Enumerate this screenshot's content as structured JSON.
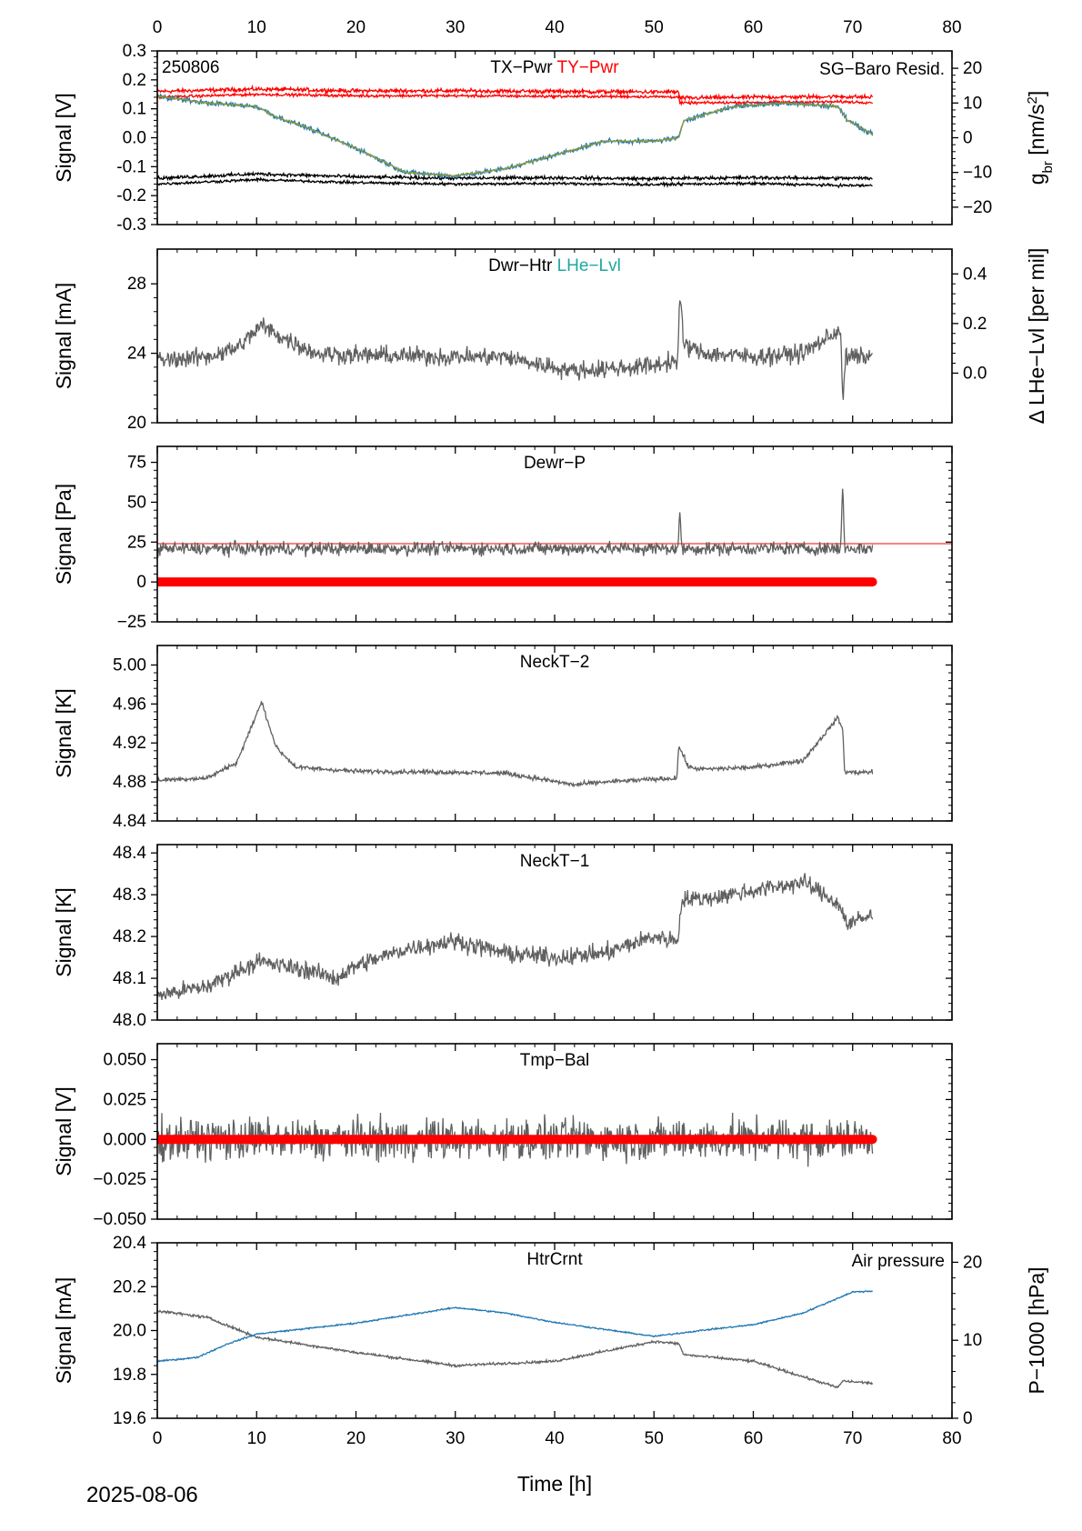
{
  "figure": {
    "date": "2025-08-06",
    "xlabel": "Time [h]",
    "xlim": [
      0,
      80
    ],
    "xticks": [
      0,
      10,
      20,
      30,
      40,
      50,
      60,
      70,
      80
    ],
    "colors": {
      "axes": "#000000",
      "gray": "#606060",
      "red": "#ff0000",
      "blue": "#1f77b4",
      "teal": "#1fa8a0",
      "olive": "#8b9a3a"
    }
  },
  "chart_data": [
    {
      "type": "line",
      "title_parts": [
        {
          "text": "TX−Pwr",
          "color": "#000000"
        },
        {
          "text": "TY−Pwr",
          "color": "#ff0000"
        }
      ],
      "annotation": "250806",
      "right_legend": "SG−Baro Resid.",
      "ylabel": "Signal [V]",
      "ylim": [
        -0.3,
        0.3
      ],
      "yticks": [
        "-0.3",
        "-0.2",
        "-0.1",
        "0.0",
        "0.1",
        "0.2",
        "0.3"
      ],
      "ylabel_right": "g_br [nm/s^2]",
      "ylabel_right_text": {
        "main": "g",
        "sub": "br",
        "rest": " [nm/s",
        "sup": "2",
        "end": "]"
      },
      "ylim_right": [
        -25,
        25
      ],
      "yticks_right": [
        "−20",
        "−10",
        "0",
        "10",
        "20"
      ],
      "yticks_right_values": [
        -20,
        -10,
        0,
        10,
        20
      ],
      "series": [
        {
          "axis": "left",
          "color": "#ff0000",
          "noise": 0.006,
          "x": [
            0,
            10,
            20,
            30,
            40,
            50,
            52.5,
            52.6,
            60,
            68.5,
            69,
            72
          ],
          "values": [
            0.16,
            0.168,
            0.162,
            0.162,
            0.16,
            0.158,
            0.158,
            0.137,
            0.14,
            0.142,
            0.142,
            0.14
          ]
        },
        {
          "axis": "left",
          "color": "#ff0000",
          "noise": 0.004,
          "x": [
            0,
            10,
            20,
            30,
            40,
            50,
            52.5,
            52.6,
            60,
            68.5,
            69,
            72
          ],
          "values": [
            0.14,
            0.15,
            0.145,
            0.145,
            0.143,
            0.142,
            0.141,
            0.12,
            0.122,
            0.124,
            0.124,
            0.122
          ]
        },
        {
          "axis": "left",
          "color": "#000000",
          "noise": 0.005,
          "x": [
            0,
            10,
            20,
            30,
            40,
            50,
            52.5,
            60,
            69,
            72
          ],
          "values": [
            -0.14,
            -0.125,
            -0.135,
            -0.14,
            -0.138,
            -0.142,
            -0.14,
            -0.138,
            -0.14,
            -0.14
          ]
        },
        {
          "axis": "left",
          "color": "#000000",
          "noise": 0.004,
          "x": [
            0,
            10,
            20,
            30,
            40,
            50,
            52.5,
            60,
            69,
            72
          ],
          "values": [
            -0.16,
            -0.145,
            -0.155,
            -0.16,
            -0.158,
            -0.162,
            -0.16,
            -0.158,
            -0.165,
            -0.165
          ]
        },
        {
          "axis": "right",
          "color": "#1f77b4",
          "noise": 0.6,
          "x": [
            0,
            5,
            10,
            12,
            15,
            20,
            25,
            30,
            35,
            40,
            45,
            50,
            52.5,
            53,
            58,
            63,
            68.5,
            69.5,
            72
          ],
          "values": [
            12,
            10,
            9,
            6,
            3,
            -3,
            -10,
            -11,
            -9,
            -5,
            -1,
            -1,
            0,
            5,
            9,
            10,
            9,
            5,
            1
          ]
        },
        {
          "axis": "right",
          "color": "#8b9a3a",
          "noise": 0.2,
          "x": [
            0,
            5,
            10,
            12,
            15,
            20,
            25,
            30,
            35,
            40,
            45,
            50,
            52.5,
            53,
            58,
            63,
            68.5,
            69.5,
            72
          ],
          "values": [
            12,
            10,
            9,
            6,
            3,
            -3,
            -10,
            -11,
            -9,
            -5,
            -1,
            -1,
            0,
            5,
            9,
            10,
            9,
            5,
            1
          ]
        }
      ]
    },
    {
      "type": "line",
      "title_parts": [
        {
          "text": "Dwr−Htr",
          "color": "#000000"
        },
        {
          "text": "LHe−Lvl",
          "color": "#1fa8a0"
        }
      ],
      "ylabel": "Signal [mA]",
      "ylim": [
        20,
        30
      ],
      "yticks": [
        "20",
        "24",
        "28"
      ],
      "yticks_values": [
        20,
        24,
        28
      ],
      "ylabel_right": "Δ LHe−Lvl [per mil]",
      "ylim_right": [
        -0.2,
        0.5
      ],
      "yticks_right": [
        "0.0",
        "0.2",
        "0.4"
      ],
      "yticks_right_values": [
        0,
        0.2,
        0.4
      ],
      "series": [
        {
          "axis": "left",
          "color": "#606060",
          "noise": 0.45,
          "x": [
            0,
            5,
            8,
            10.5,
            13,
            16,
            20,
            30,
            35,
            38,
            42,
            45,
            50,
            52.4,
            52.6,
            53,
            55,
            60,
            65,
            68.8,
            69,
            69.3,
            72
          ],
          "values": [
            23.6,
            23.8,
            24.3,
            25.6,
            24.8,
            24.0,
            23.9,
            23.8,
            23.8,
            23.4,
            23.0,
            23.1,
            23.3,
            23.6,
            27.4,
            24.5,
            24.0,
            23.8,
            24.0,
            25.4,
            21.0,
            23.8,
            23.8
          ]
        }
      ]
    },
    {
      "type": "line",
      "title_parts": [
        {
          "text": "Dewr−P",
          "color": "#000000"
        }
      ],
      "ylabel": "Signal [Pa]",
      "ylim": [
        -25,
        85
      ],
      "yticks": [
        "−25",
        "0",
        "25",
        "50",
        "75"
      ],
      "yticks_values": [
        -25,
        0,
        25,
        50,
        75
      ],
      "reference_line": {
        "y": 24,
        "color": "#ff0000"
      },
      "series": [
        {
          "axis": "left",
          "color": "#606060",
          "noise": 3.5,
          "x": [
            0,
            52.4,
            52.6,
            52.8,
            68.8,
            69,
            69.2,
            72
          ],
          "values": [
            21,
            21,
            42,
            21,
            21,
            63,
            21,
            21
          ]
        },
        {
          "axis": "left",
          "color": "#ff0000",
          "noise": 0,
          "thick": true,
          "x": [
            0,
            72
          ],
          "values": [
            0,
            0
          ]
        }
      ]
    },
    {
      "type": "line",
      "title_parts": [
        {
          "text": "NeckT−2",
          "color": "#000000"
        }
      ],
      "ylabel": "Signal [K]",
      "ylim": [
        4.84,
        5.02
      ],
      "yticks": [
        "4.84",
        "4.88",
        "4.92",
        "4.96",
        "5.00"
      ],
      "yticks_values": [
        4.84,
        4.88,
        4.92,
        4.96,
        5.0
      ],
      "series": [
        {
          "axis": "left",
          "color": "#606060",
          "noise": 0.002,
          "x": [
            0,
            5,
            8,
            10.5,
            12,
            14,
            20,
            30,
            35,
            38,
            42,
            45,
            52.3,
            52.5,
            53.5,
            55,
            60,
            65,
            68.5,
            69,
            69.2,
            72
          ],
          "values": [
            4.882,
            4.884,
            4.9,
            4.962,
            4.915,
            4.895,
            4.891,
            4.89,
            4.889,
            4.884,
            4.877,
            4.88,
            4.884,
            4.917,
            4.895,
            4.893,
            4.895,
            4.902,
            4.946,
            4.934,
            4.89,
            4.89
          ]
        }
      ]
    },
    {
      "type": "line",
      "title_parts": [
        {
          "text": "NeckT−1",
          "color": "#000000"
        }
      ],
      "ylabel": "Signal [K]",
      "ylim": [
        48.0,
        48.42
      ],
      "yticks": [
        "48.0",
        "48.1",
        "48.2",
        "48.3",
        "48.4"
      ],
      "yticks_values": [
        48.0,
        48.1,
        48.2,
        48.3,
        48.4
      ],
      "series": [
        {
          "axis": "left",
          "color": "#606060",
          "noise": 0.018,
          "x": [
            0,
            5,
            10,
            15,
            18,
            20,
            25,
            30,
            35,
            40,
            45,
            50,
            52.4,
            52.8,
            55,
            60,
            65,
            68.5,
            69.5,
            72
          ],
          "values": [
            48.06,
            48.08,
            48.14,
            48.12,
            48.1,
            48.13,
            48.17,
            48.19,
            48.16,
            48.15,
            48.16,
            48.2,
            48.19,
            48.29,
            48.29,
            48.31,
            48.33,
            48.28,
            48.23,
            48.25
          ]
        }
      ]
    },
    {
      "type": "line",
      "title_parts": [
        {
          "text": "Tmp−Bal",
          "color": "#000000"
        }
      ],
      "ylabel": "Signal [V]",
      "ylim": [
        -0.05,
        0.06
      ],
      "yticks": [
        "−0.050",
        "−0.025",
        "0.000",
        "0.025",
        "0.050"
      ],
      "yticks_values": [
        -0.05,
        -0.025,
        0,
        0.025,
        0.05
      ],
      "series": [
        {
          "axis": "left",
          "color": "#606060",
          "noise": 0.011,
          "x": [
            0,
            72
          ],
          "values": [
            0,
            0
          ]
        },
        {
          "axis": "left",
          "color": "#ff0000",
          "noise": 0,
          "thick": true,
          "x": [
            0,
            72
          ],
          "values": [
            0,
            0
          ]
        }
      ]
    },
    {
      "type": "line",
      "title_parts": [
        {
          "text": "HtrCrnt",
          "color": "#000000"
        }
      ],
      "right_legend": "Air pressure",
      "ylabel": "Signal [mA]",
      "ylim": [
        19.6,
        20.4
      ],
      "yticks": [
        "19.6",
        "19.8",
        "20.0",
        "20.2",
        "20.4"
      ],
      "yticks_values": [
        19.6,
        19.8,
        20.0,
        20.2,
        20.4
      ],
      "ylabel_right": "P−1000 [hPa]",
      "ylim_right": [
        0,
        22.5
      ],
      "yticks_right": [
        "0",
        "10",
        "20"
      ],
      "yticks_right_values": [
        0,
        10,
        20
      ],
      "series": [
        {
          "axis": "left",
          "color": "#606060",
          "noise": 0.005,
          "x": [
            0,
            5,
            10,
            20,
            30,
            40,
            50,
            52.5,
            53,
            60,
            68.5,
            69,
            72
          ],
          "values": [
            20.09,
            20.06,
            19.97,
            19.9,
            19.84,
            19.86,
            19.95,
            19.94,
            19.89,
            19.86,
            19.74,
            19.77,
            19.76
          ]
        },
        {
          "axis": "right",
          "color": "#1f77b4",
          "noise": 0.08,
          "x": [
            0,
            4,
            7,
            10,
            15,
            20,
            25,
            30,
            35,
            40,
            45,
            50,
            55,
            60,
            65,
            70,
            72
          ],
          "values": [
            7.3,
            7.8,
            9.5,
            10.8,
            11.5,
            12.2,
            13.2,
            14.2,
            13.5,
            12.3,
            11.4,
            10.5,
            11.3,
            12.0,
            13.5,
            16.2,
            16.3
          ]
        }
      ]
    }
  ]
}
